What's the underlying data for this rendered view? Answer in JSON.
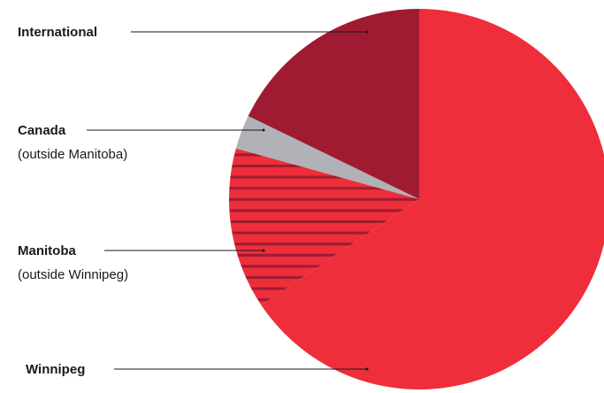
{
  "chart_data": {
    "type": "pie",
    "start_angle_deg": 0,
    "direction": "clockwise",
    "slices": [
      {
        "label": "Winnipeg",
        "sublabel": "",
        "value": 65.6,
        "color": "#ee2e3b",
        "pattern": "none"
      },
      {
        "label": "Manitoba",
        "sublabel": "(outside Winnipeg)",
        "value": 13.7,
        "color": "#ee2e3b",
        "pattern": "horizontal-stripes",
        "pattern_color": "#9f1b32"
      },
      {
        "label": "Canada",
        "sublabel": "(outside Manitoba)",
        "value": 2.9,
        "color": "#b1b2b5",
        "pattern": "none"
      },
      {
        "label": "International",
        "sublabel": "",
        "value": 17.8,
        "color": "#9f1b32",
        "pattern": "none"
      }
    ]
  }
}
